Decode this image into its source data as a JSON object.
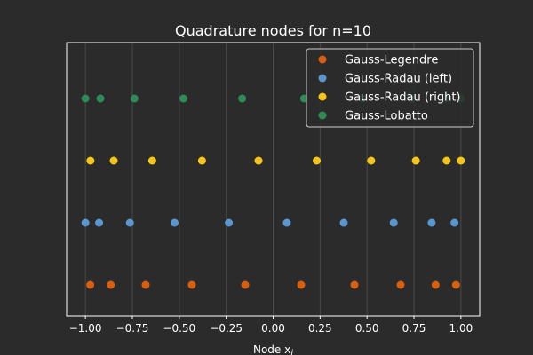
{
  "chart_data": {
    "type": "scatter",
    "title": "Quadrature nodes for n=10",
    "xlabel": "Node x",
    "xlabel_subscript": "i",
    "ylabel": "",
    "xlim": [
      -1.1,
      1.1
    ],
    "ylim": [
      -0.5,
      3.9
    ],
    "grid": "vertical",
    "legend_position": "top-right",
    "xticks": [
      "−1.00",
      "−0.75",
      "−0.50",
      "−0.25",
      "0.00",
      "0.25",
      "0.50",
      "0.75",
      "1.00"
    ],
    "xtick_values": [
      -1.0,
      -0.75,
      -0.5,
      -0.25,
      0.0,
      0.25,
      0.5,
      0.75,
      1.0
    ],
    "series": [
      {
        "name": "Gauss-Legendre",
        "color": "#d95f0e",
        "level": 0,
        "x": [
          -0.974,
          -0.865,
          -0.679,
          -0.433,
          -0.149,
          0.149,
          0.433,
          0.679,
          0.865,
          0.974
        ]
      },
      {
        "name": "Gauss-Radau (left)",
        "color": "#5b96cf",
        "level": 1,
        "x": [
          -1.0,
          -0.927,
          -0.763,
          -0.525,
          -0.236,
          0.073,
          0.376,
          0.642,
          0.844,
          0.966
        ]
      },
      {
        "name": "Gauss-Radau (right)",
        "color": "#f5c518",
        "level": 2,
        "x": [
          -0.973,
          -0.849,
          -0.644,
          -0.379,
          -0.078,
          0.232,
          0.522,
          0.76,
          0.924,
          1.0
        ]
      },
      {
        "name": "Gauss-Lobatto",
        "color": "#2e8b57",
        "level": 3,
        "x": [
          -1.0,
          -0.92,
          -0.739,
          -0.478,
          -0.165,
          0.165,
          0.478,
          0.739,
          0.92,
          1.0
        ]
      }
    ]
  },
  "colors": {
    "background": "#2b2b2b",
    "axes_face": "#2b2b2b",
    "grid": "#4a4a4a",
    "text": "#ffffff",
    "legend_face": "#2b2b2b",
    "legend_edge": "#cccccc"
  }
}
